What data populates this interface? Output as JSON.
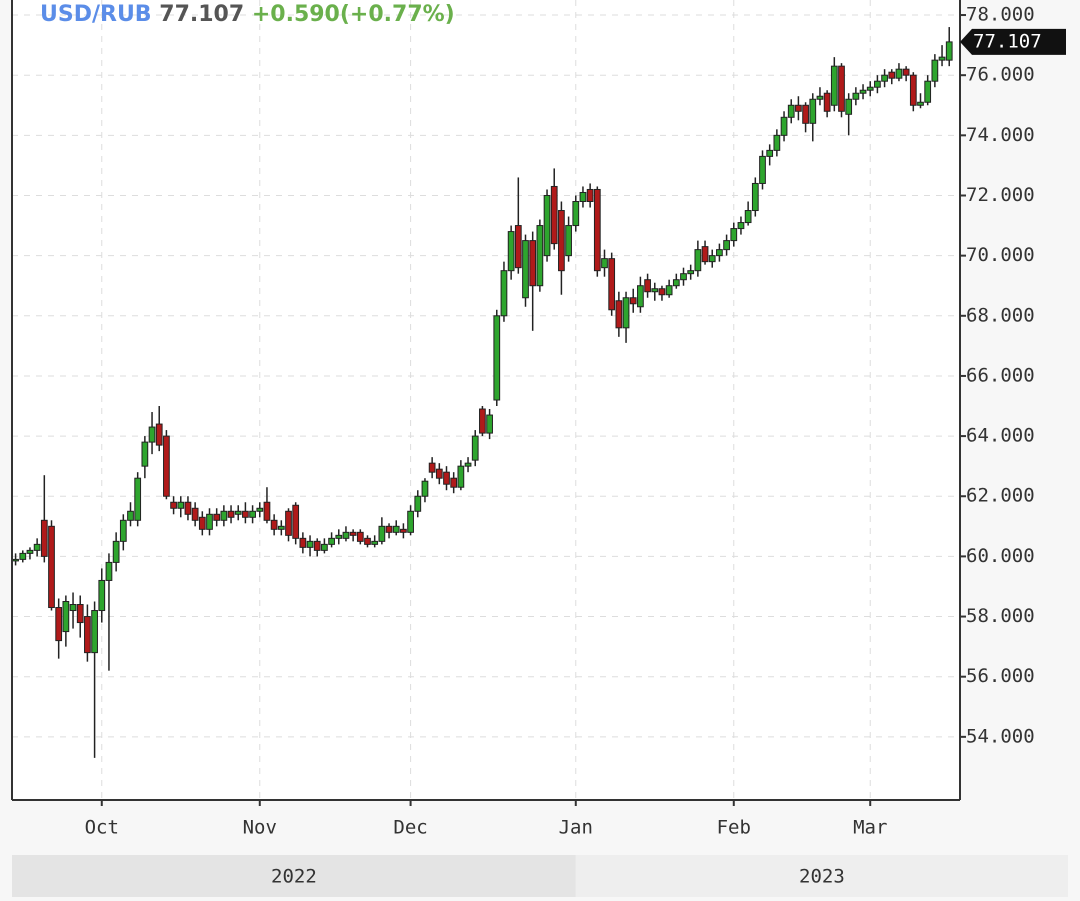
{
  "chart_data": {
    "type": "candlestick",
    "title": "USD/RUB",
    "change": "+0.590(+0.77%)",
    "categories": [
      null,
      null,
      null,
      null,
      null,
      null,
      null,
      null,
      null,
      null,
      null,
      null,
      "Oct",
      null,
      null,
      null,
      null,
      null,
      null,
      null,
      null,
      null,
      null,
      null,
      null,
      null,
      null,
      null,
      null,
      null,
      null,
      null,
      null,
      null,
      "Nov",
      null,
      null,
      null,
      null,
      null,
      null,
      null,
      null,
      null,
      null,
      null,
      null,
      null,
      null,
      null,
      null,
      null,
      null,
      null,
      null,
      "Dec",
      null,
      null,
      null,
      null,
      null,
      null,
      null,
      null,
      null,
      null,
      null,
      null,
      null,
      null,
      null,
      null,
      null,
      null,
      null,
      null,
      null,
      null,
      "Jan",
      null,
      null,
      null,
      null,
      null,
      null,
      null,
      null,
      null,
      null,
      null,
      null,
      null,
      null,
      null,
      null,
      null,
      null,
      null,
      null,
      null,
      "Feb",
      null,
      null,
      null,
      null,
      null,
      null,
      null,
      null,
      null,
      null,
      null,
      null,
      null,
      null,
      null,
      null,
      null,
      null,
      "Mar",
      null,
      null,
      null,
      null,
      null,
      null,
      null,
      null,
      null,
      null,
      null
    ],
    "open": [
      59.9,
      59.9,
      60.1,
      60.2,
      61.2,
      61.0,
      58.3,
      57.5,
      58.2,
      58.4,
      58.0,
      56.8,
      58.2,
      59.2,
      59.8,
      60.5,
      61.2,
      61.2,
      63.0,
      63.8,
      64.4,
      64.0,
      61.8,
      61.6,
      61.8,
      61.6,
      61.3,
      60.9,
      61.4,
      61.2,
      61.5,
      61.4,
      61.5,
      61.3,
      61.5,
      61.8,
      61.2,
      60.9,
      61.5,
      61.7,
      60.6,
      60.3,
      60.5,
      60.2,
      60.4,
      60.6,
      60.6,
      60.8,
      60.8,
      60.6,
      60.4,
      60.5,
      61.0,
      60.8,
      60.9,
      60.8,
      61.5,
      62.0,
      63.1,
      62.9,
      62.8,
      62.6,
      62.3,
      63.0,
      63.2,
      64.9,
      64.1,
      65.2,
      68.0,
      69.5,
      71.0,
      68.6,
      70.5,
      69.0,
      70.0,
      72.3,
      71.5,
      70.0,
      71.0,
      71.8,
      72.2,
      72.2,
      69.6,
      69.9,
      68.5,
      67.6,
      68.6,
      68.3,
      69.2,
      68.8,
      68.9,
      68.7,
      69.0,
      69.2,
      69.4,
      69.5,
      70.3,
      69.8,
      70.0,
      70.2,
      70.5,
      70.9,
      71.1,
      71.5,
      72.4,
      73.3,
      73.5,
      74.0,
      74.6,
      75.0,
      75.0,
      74.4,
      75.2,
      75.4,
      75.0,
      76.3,
      74.7,
      75.2,
      75.4,
      75.5,
      75.6,
      75.8,
      76.1,
      75.9,
      76.2,
      76.0,
      75.0,
      75.1,
      75.8,
      76.5,
      76.5
    ],
    "high": [
      60.1,
      60.2,
      60.3,
      60.6,
      62.7,
      61.2,
      58.6,
      58.7,
      58.8,
      58.7,
      58.4,
      58.5,
      59.6,
      60.1,
      60.8,
      61.4,
      61.8,
      62.8,
      64.0,
      64.8,
      65.0,
      64.2,
      62.0,
      62.0,
      62.0,
      61.8,
      61.5,
      61.6,
      61.6,
      61.7,
      61.7,
      61.7,
      61.8,
      61.7,
      61.8,
      62.3,
      61.4,
      61.2,
      61.6,
      61.8,
      60.8,
      60.7,
      60.6,
      60.6,
      60.8,
      60.9,
      61.0,
      60.9,
      60.9,
      60.7,
      60.7,
      61.3,
      61.1,
      61.2,
      61.1,
      61.7,
      62.2,
      62.6,
      63.3,
      63.1,
      63.0,
      62.8,
      63.2,
      63.3,
      64.2,
      65.0,
      64.9,
      68.2,
      69.8,
      71.0,
      72.6,
      70.7,
      70.8,
      71.2,
      72.2,
      72.9,
      71.8,
      71.3,
      72.0,
      72.3,
      72.4,
      72.3,
      70.2,
      70.1,
      68.8,
      68.8,
      68.9,
      69.3,
      69.4,
      69.1,
      69.0,
      69.2,
      69.4,
      69.6,
      69.7,
      70.5,
      70.5,
      70.2,
      70.4,
      70.7,
      71.1,
      71.3,
      71.8,
      72.6,
      73.5,
      73.7,
      74.2,
      74.8,
      75.2,
      75.3,
      75.1,
      75.4,
      75.6,
      75.5,
      76.6,
      76.4,
      75.4,
      75.6,
      75.7,
      75.8,
      76.0,
      76.2,
      76.2,
      76.4,
      76.3,
      76.1,
      75.4,
      76.0,
      76.7,
      77.0,
      77.6
    ],
    "low": [
      59.7,
      59.8,
      59.9,
      60.0,
      59.8,
      58.2,
      56.6,
      57.0,
      57.6,
      57.3,
      56.5,
      53.3,
      57.8,
      56.2,
      59.5,
      60.2,
      61.0,
      61.0,
      62.6,
      63.4,
      63.5,
      61.9,
      61.4,
      61.3,
      61.2,
      61.0,
      60.7,
      60.7,
      61.0,
      61.0,
      61.1,
      61.2,
      61.1,
      61.1,
      61.3,
      61.1,
      60.7,
      60.7,
      60.5,
      60.4,
      60.1,
      60.0,
      60.0,
      60.1,
      60.3,
      60.4,
      60.5,
      60.5,
      60.4,
      60.3,
      60.3,
      60.4,
      60.6,
      60.7,
      60.6,
      60.7,
      61.3,
      61.8,
      62.6,
      62.4,
      62.2,
      62.1,
      62.2,
      62.8,
      63.0,
      64.0,
      63.9,
      65.0,
      67.8,
      69.2,
      69.4,
      68.3,
      67.5,
      68.8,
      69.8,
      70.2,
      68.7,
      69.8,
      70.8,
      71.6,
      71.6,
      69.3,
      69.3,
      68.0,
      67.3,
      67.1,
      68.1,
      68.1,
      68.6,
      68.5,
      68.5,
      68.6,
      68.9,
      69.0,
      69.2,
      69.3,
      69.7,
      69.6,
      69.8,
      70.0,
      70.3,
      70.7,
      71.0,
      71.3,
      72.2,
      73.0,
      73.3,
      73.8,
      74.4,
      74.5,
      74.1,
      73.8,
      75.0,
      74.6,
      74.8,
      74.6,
      74.0,
      75.0,
      75.2,
      75.3,
      75.4,
      75.6,
      75.7,
      75.8,
      75.8,
      74.8,
      74.9,
      75.0,
      75.6,
      76.3,
      76.3
    ],
    "close": [
      59.9,
      60.1,
      60.2,
      60.4,
      60.0,
      58.3,
      57.2,
      58.5,
      58.4,
      57.8,
      56.8,
      58.2,
      59.2,
      59.8,
      60.5,
      61.2,
      61.5,
      62.6,
      63.8,
      64.3,
      63.7,
      62.0,
      61.6,
      61.8,
      61.4,
      61.2,
      60.9,
      61.4,
      61.2,
      61.5,
      61.3,
      61.5,
      61.3,
      61.5,
      61.6,
      61.2,
      60.9,
      61.0,
      60.7,
      60.6,
      60.3,
      60.5,
      60.2,
      60.4,
      60.6,
      60.7,
      60.8,
      60.7,
      60.5,
      60.4,
      60.5,
      61.0,
      60.8,
      61.0,
      60.8,
      61.5,
      62.0,
      62.5,
      62.8,
      62.6,
      62.4,
      62.3,
      63.0,
      63.1,
      64.0,
      64.1,
      64.7,
      68.0,
      69.5,
      70.8,
      69.6,
      70.5,
      69.0,
      71.0,
      72.0,
      70.4,
      69.5,
      71.0,
      71.8,
      72.1,
      71.8,
      69.5,
      69.9,
      68.2,
      67.6,
      68.6,
      68.4,
      69.0,
      68.8,
      68.9,
      68.7,
      69.0,
      69.2,
      69.4,
      69.5,
      70.2,
      69.8,
      70.0,
      70.2,
      70.5,
      70.9,
      71.1,
      71.5,
      72.4,
      73.3,
      73.5,
      74.0,
      74.6,
      75.0,
      74.8,
      74.4,
      75.2,
      75.3,
      74.8,
      76.3,
      74.8,
      75.2,
      75.4,
      75.5,
      75.6,
      75.8,
      76.0,
      75.9,
      76.2,
      76.0,
      75.0,
      75.1,
      75.8,
      76.5,
      76.6,
      77.107
    ],
    "years": [
      "2022",
      "2023"
    ],
    "ylim": [
      51.9,
      78.5
    ],
    "yticks": [
      {
        "value": 54,
        "label": "54.000"
      },
      {
        "value": 56,
        "label": "56.000"
      },
      {
        "value": 58,
        "label": "58.000"
      },
      {
        "value": 60,
        "label": "60.000"
      },
      {
        "value": 62,
        "label": "62.000"
      },
      {
        "value": 64,
        "label": "64.000"
      },
      {
        "value": 66,
        "label": "66.000"
      },
      {
        "value": 68,
        "label": "68.000"
      },
      {
        "value": 70,
        "label": "70.000"
      },
      {
        "value": 72,
        "label": "72.000"
      },
      {
        "value": 74,
        "label": "74.000"
      },
      {
        "value": 76,
        "label": "76.000"
      },
      {
        "value": 78,
        "label": "78.000"
      }
    ],
    "grid": true,
    "up_color": "#2ea52e",
    "down_color": "#b01a1a",
    "title_color": "#5b8de8",
    "change_color": "#6ab04c"
  }
}
